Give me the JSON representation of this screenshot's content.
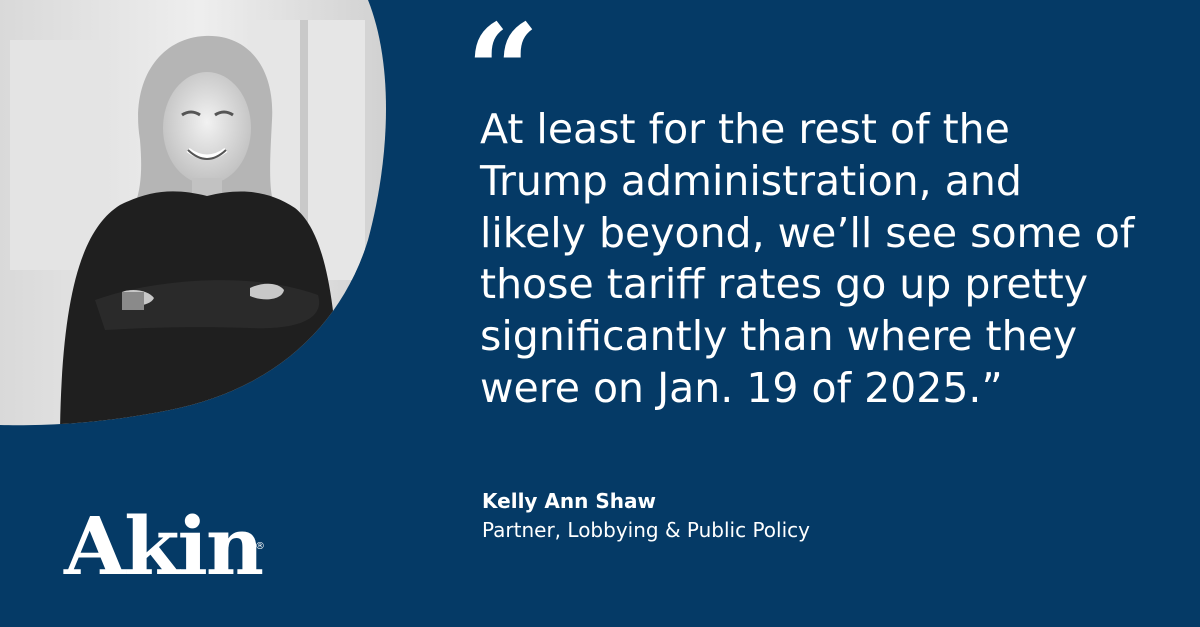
{
  "quote": {
    "open_mark": "“",
    "lines": [
      "At least for the rest of the",
      "Trump administration, and",
      "likely beyond, we’ll see some of",
      "those tariff rates go up pretty",
      "significantly than where they",
      "were on Jan. 19 of 2025.”"
    ]
  },
  "author": {
    "name": "Kelly Ann Shaw",
    "title": "Partner, Lobbying & Public Policy"
  },
  "brand": {
    "logo_text": "Akin",
    "registered_mark": "®",
    "background_color": "#053a66",
    "text_color": "#ffffff"
  },
  "photo": {
    "icon": "portrait-photo-grayscale"
  }
}
